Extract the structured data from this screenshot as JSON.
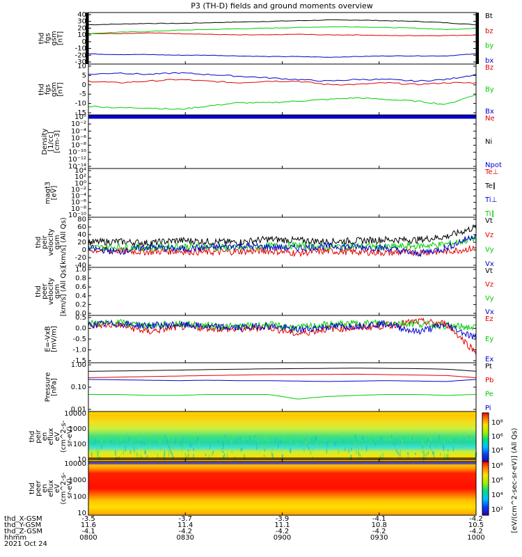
{
  "title": "P3 (TH-D) fields and ground moments overview",
  "colors": {
    "black": "#000000",
    "red": "#e00000",
    "green": "#00cc00",
    "blue": "#0000cc",
    "axis": "#000000"
  },
  "chart_data": [
    {
      "type": "line",
      "id": "fgs_gsm",
      "ylabel": [
        "thd",
        "fgs",
        "gsm",
        "[nT]"
      ],
      "ylim": [
        -30,
        40
      ],
      "ticks": [
        40,
        30,
        20,
        10,
        0,
        -10,
        -20,
        -30
      ],
      "series": [
        {
          "name": "Bt",
          "color": "black",
          "values": [
            25,
            26,
            27,
            27,
            28,
            29,
            30,
            31,
            32,
            32,
            31,
            30,
            28,
            25
          ]
        },
        {
          "name": "bz",
          "color": "red",
          "values": [
            12,
            12,
            13,
            12,
            11,
            10,
            10,
            11,
            10,
            10,
            9,
            9,
            9,
            10
          ]
        },
        {
          "name": "by",
          "color": "green",
          "values": [
            12,
            14,
            15,
            17,
            18,
            19,
            20,
            21,
            22,
            22,
            21,
            20,
            18,
            20
          ]
        },
        {
          "name": "bx",
          "color": "blue",
          "values": [
            -18,
            -19,
            -19,
            -20,
            -20,
            -21,
            -22,
            -22,
            -23,
            -22,
            -21,
            -21,
            -21,
            -18
          ]
        }
      ]
    },
    {
      "type": "line",
      "id": "fgs_gsm2",
      "ylabel": [
        "thd",
        "fgs",
        "gsm",
        "[nT]"
      ],
      "ylim": [
        -18,
        10
      ],
      "ticks": [
        10,
        5,
        0,
        -5,
        -10,
        -15
      ],
      "series": [
        {
          "name": "Bz",
          "color": "red",
          "values": [
            1,
            0,
            1,
            2,
            1,
            0,
            1,
            1,
            -1,
            -1,
            0,
            -1,
            0,
            0
          ]
        },
        {
          "name": "By",
          "color": "green",
          "values": [
            -14,
            -15,
            -15,
            -16,
            -14,
            -12,
            -12,
            -11,
            -10,
            -9,
            -10,
            -11,
            -13,
            -7
          ]
        },
        {
          "name": "Bx",
          "color": "blue",
          "values": [
            5,
            6,
            5,
            6,
            5,
            4,
            3,
            2,
            1,
            2,
            2,
            1,
            2,
            5
          ]
        }
      ]
    },
    {
      "type": "line",
      "id": "density",
      "ylabel": [
        "Density",
        "[1/cc]",
        "[cm-3]"
      ],
      "ylog": true,
      "ylim": [
        1e-14,
        1
      ],
      "ticks": [
        "10⁰",
        "10⁻²",
        "10⁻⁴",
        "10⁻⁶",
        "10⁻⁸",
        "10⁻¹⁰",
        "10⁻¹²",
        "10⁻¹⁴"
      ],
      "series": [
        {
          "name": "Ne",
          "color": "red",
          "values": [
            1,
            1,
            1,
            1,
            1,
            1,
            1,
            1,
            1,
            1,
            1,
            1,
            1,
            1
          ]
        },
        {
          "name": "Ni",
          "color": "black",
          "values": [
            1,
            1,
            1,
            1,
            1,
            1,
            1,
            1,
            1,
            1,
            1,
            1,
            1,
            1
          ]
        },
        {
          "name": "Npot",
          "color": "blue",
          "values": [
            1,
            1,
            1,
            1,
            1,
            1,
            1,
            1,
            1,
            1,
            1,
            1,
            1,
            1
          ]
        }
      ]
    },
    {
      "type": "line",
      "id": "temp",
      "ylabel": [
        "magt3",
        "[eV]"
      ],
      "ylog": true,
      "ylim": [
        1e-10,
        10000.0
      ],
      "ticks": [
        "10⁴",
        "10²",
        "10⁰",
        "10⁻²",
        "10⁻⁴",
        "10⁻⁶",
        "10⁻⁸",
        "10⁻¹⁰"
      ],
      "series": [
        {
          "name": "Te⊥",
          "color": "red",
          "values": []
        },
        {
          "name": "Te∥",
          "color": "black",
          "values": []
        },
        {
          "name": "Ti⊥",
          "color": "blue",
          "values": []
        },
        {
          "name": "Ti∥",
          "color": "green",
          "values": []
        }
      ]
    },
    {
      "type": "line",
      "id": "peir_vel",
      "ylabel": [
        "thd",
        "peir",
        "velocity",
        "gsm",
        "[km/s] (All Qs)"
      ],
      "ylim": [
        -40,
        80
      ],
      "ticks": [
        80,
        60,
        40,
        20,
        0,
        -20,
        -40
      ],
      "series": [
        {
          "name": "Vt",
          "color": "black",
          "values": [
            20,
            22,
            18,
            25,
            22,
            20,
            28,
            25,
            22,
            24,
            27,
            26,
            35,
            60
          ]
        },
        {
          "name": "Vz",
          "color": "red",
          "values": [
            0,
            -2,
            -5,
            -3,
            -6,
            -4,
            -2,
            -8,
            -3,
            -5,
            -7,
            -6,
            -4,
            5
          ]
        },
        {
          "name": "Vy",
          "color": "green",
          "values": [
            5,
            8,
            6,
            10,
            8,
            5,
            10,
            12,
            8,
            10,
            8,
            10,
            15,
            30
          ]
        },
        {
          "name": "Vx",
          "color": "blue",
          "values": [
            5,
            -5,
            8,
            2,
            6,
            10,
            8,
            5,
            10,
            8,
            5,
            -10,
            5,
            40
          ]
        }
      ]
    },
    {
      "type": "line",
      "id": "peer_vel",
      "ylabel": [
        "thd",
        "peer",
        "velocity",
        "gsm",
        "[km/s] (All Qs)"
      ],
      "ylim": [
        0,
        1
      ],
      "ticks": [
        "1.0",
        "0.8",
        "0.6",
        "0.4",
        "0.2",
        "0.0"
      ],
      "series": [
        {
          "name": "Vt",
          "color": "black",
          "values": []
        },
        {
          "name": "Vz",
          "color": "red",
          "values": []
        },
        {
          "name": "Vy",
          "color": "green",
          "values": []
        },
        {
          "name": "Vx",
          "color": "blue",
          "values": []
        }
      ]
    },
    {
      "type": "line",
      "id": "e_vxb",
      "ylabel": [
        "E=-VxB",
        "[mV/m]"
      ],
      "ylim": [
        -1.6,
        0.5
      ],
      "ticks": [
        "0.5",
        "0.0",
        "-0.5",
        "-1.0",
        "-1.5"
      ],
      "series": [
        {
          "name": "Ez",
          "color": "red",
          "values": [
            0.1,
            0.15,
            -0.2,
            0.05,
            0.0,
            -0.1,
            0.05,
            -0.3,
            -0.05,
            0.0,
            0.1,
            0.3,
            0.2,
            -1.2
          ]
        },
        {
          "name": "Ey",
          "color": "green",
          "values": [
            0.2,
            0.25,
            0.1,
            0.2,
            0.1,
            0.05,
            0.15,
            0.0,
            0.15,
            0.2,
            0.25,
            0.2,
            0.1,
            0.0
          ]
        },
        {
          "name": "Ex",
          "color": "blue",
          "values": [
            0.15,
            0.2,
            0.1,
            0.15,
            0.05,
            0.0,
            0.1,
            -0.1,
            0.05,
            0.1,
            0.2,
            -0.2,
            0.15,
            -0.5
          ]
        }
      ]
    },
    {
      "type": "line",
      "id": "pressure",
      "ylabel": [
        "Pressure",
        "[nPa]"
      ],
      "ylog": true,
      "ylim": [
        0.01,
        1.2
      ],
      "ticks": [
        "1.00",
        "0.10",
        "0.01"
      ],
      "series": [
        {
          "name": "Pt",
          "color": "black",
          "values": [
            0.6,
            0.62,
            0.65,
            0.68,
            0.72,
            0.75,
            0.78,
            0.8,
            0.82,
            0.84,
            0.82,
            0.8,
            0.75,
            0.6
          ]
        },
        {
          "name": "Pb",
          "color": "red",
          "values": [
            0.3,
            0.32,
            0.34,
            0.36,
            0.38,
            0.4,
            0.42,
            0.42,
            0.43,
            0.44,
            0.42,
            0.4,
            0.38,
            0.3
          ]
        },
        {
          "name": "Pe",
          "color": "green",
          "values": [
            0.05,
            0.05,
            0.045,
            0.045,
            0.05,
            0.05,
            0.05,
            0.03,
            0.04,
            0.045,
            0.05,
            0.05,
            0.045,
            0.05
          ]
        },
        {
          "name": "Pi",
          "color": "blue",
          "values": [
            0.25,
            0.24,
            0.23,
            0.22,
            0.23,
            0.22,
            0.22,
            0.21,
            0.2,
            0.21,
            0.22,
            0.21,
            0.2,
            0.25
          ]
        }
      ]
    },
    {
      "type": "heatmap",
      "id": "peir_en",
      "ylabel": [
        "thd",
        "peir",
        "en",
        "eflux",
        "eV",
        "(cm^2-s-",
        "sr-eV)"
      ],
      "ylog": true,
      "ticks": [
        "10000",
        "1000",
        "100",
        "10"
      ]
    },
    {
      "type": "heatmap",
      "id": "peer_en",
      "ylabel": [
        "thd",
        "peer",
        "en",
        "eflux",
        "eV",
        "(cm^2-s-",
        "sr-eV)"
      ],
      "ylog": true,
      "ticks": [
        "10000",
        "1000",
        "100",
        "10"
      ]
    }
  ],
  "colorbar": {
    "label": "[eV/(cm^2-sec-sr-eV)] (All Qs)",
    "upper": [
      "10⁸",
      "10⁶",
      "10⁴"
    ],
    "lower": [
      "10⁸",
      "10⁶",
      "10⁴",
      "10²"
    ]
  },
  "xaxis": {
    "rows": [
      {
        "label": "thd_X-GSM",
        "values": [
          "-3.5",
          "-3.7",
          "-3.9",
          "-4.1",
          "-4.2"
        ]
      },
      {
        "label": "thd_Y-GSM",
        "values": [
          "11.6",
          "11.4",
          "11.1",
          "10.8",
          "10.5"
        ]
      },
      {
        "label": "thd_Z-GSM",
        "values": [
          "-4.1",
          "-4.2",
          "-4.2",
          "-4.2",
          "-4.2"
        ]
      },
      {
        "label": "hhmm",
        "values": [
          "0800",
          "0830",
          "0900",
          "0930",
          "1000"
        ]
      }
    ],
    "date": "2021 Oct 24"
  }
}
